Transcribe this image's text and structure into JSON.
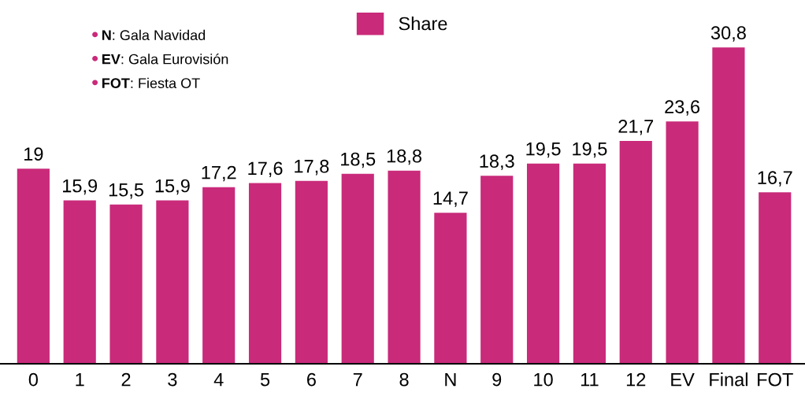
{
  "chart_data": {
    "type": "bar",
    "categories": [
      "0",
      "1",
      "2",
      "3",
      "4",
      "5",
      "6",
      "7",
      "8",
      "N",
      "9",
      "10",
      "11",
      "12",
      "EV",
      "Final",
      "FOT"
    ],
    "series": [
      {
        "name": "Share",
        "color": "#c92a7a",
        "values": [
          19,
          15.9,
          15.5,
          15.9,
          17.2,
          17.6,
          17.8,
          18.5,
          18.8,
          14.7,
          18.3,
          19.5,
          19.5,
          21.7,
          23.6,
          30.8,
          16.7
        ],
        "value_labels": [
          "19",
          "15,9",
          "15,5",
          "15,9",
          "17,2",
          "17,6",
          "17,8",
          "18,5",
          "18,8",
          "14,7",
          "18,3",
          "19,5",
          "19,5",
          "21,7",
          "23,6",
          "30,8",
          "16,7"
        ]
      }
    ],
    "annotations": [
      "N: Gala Navidad",
      "EV: Gala Eurovisión",
      "FOT: Fiesta OT"
    ],
    "legend": "top",
    "grid": false,
    "tick_labels": "x"
  }
}
